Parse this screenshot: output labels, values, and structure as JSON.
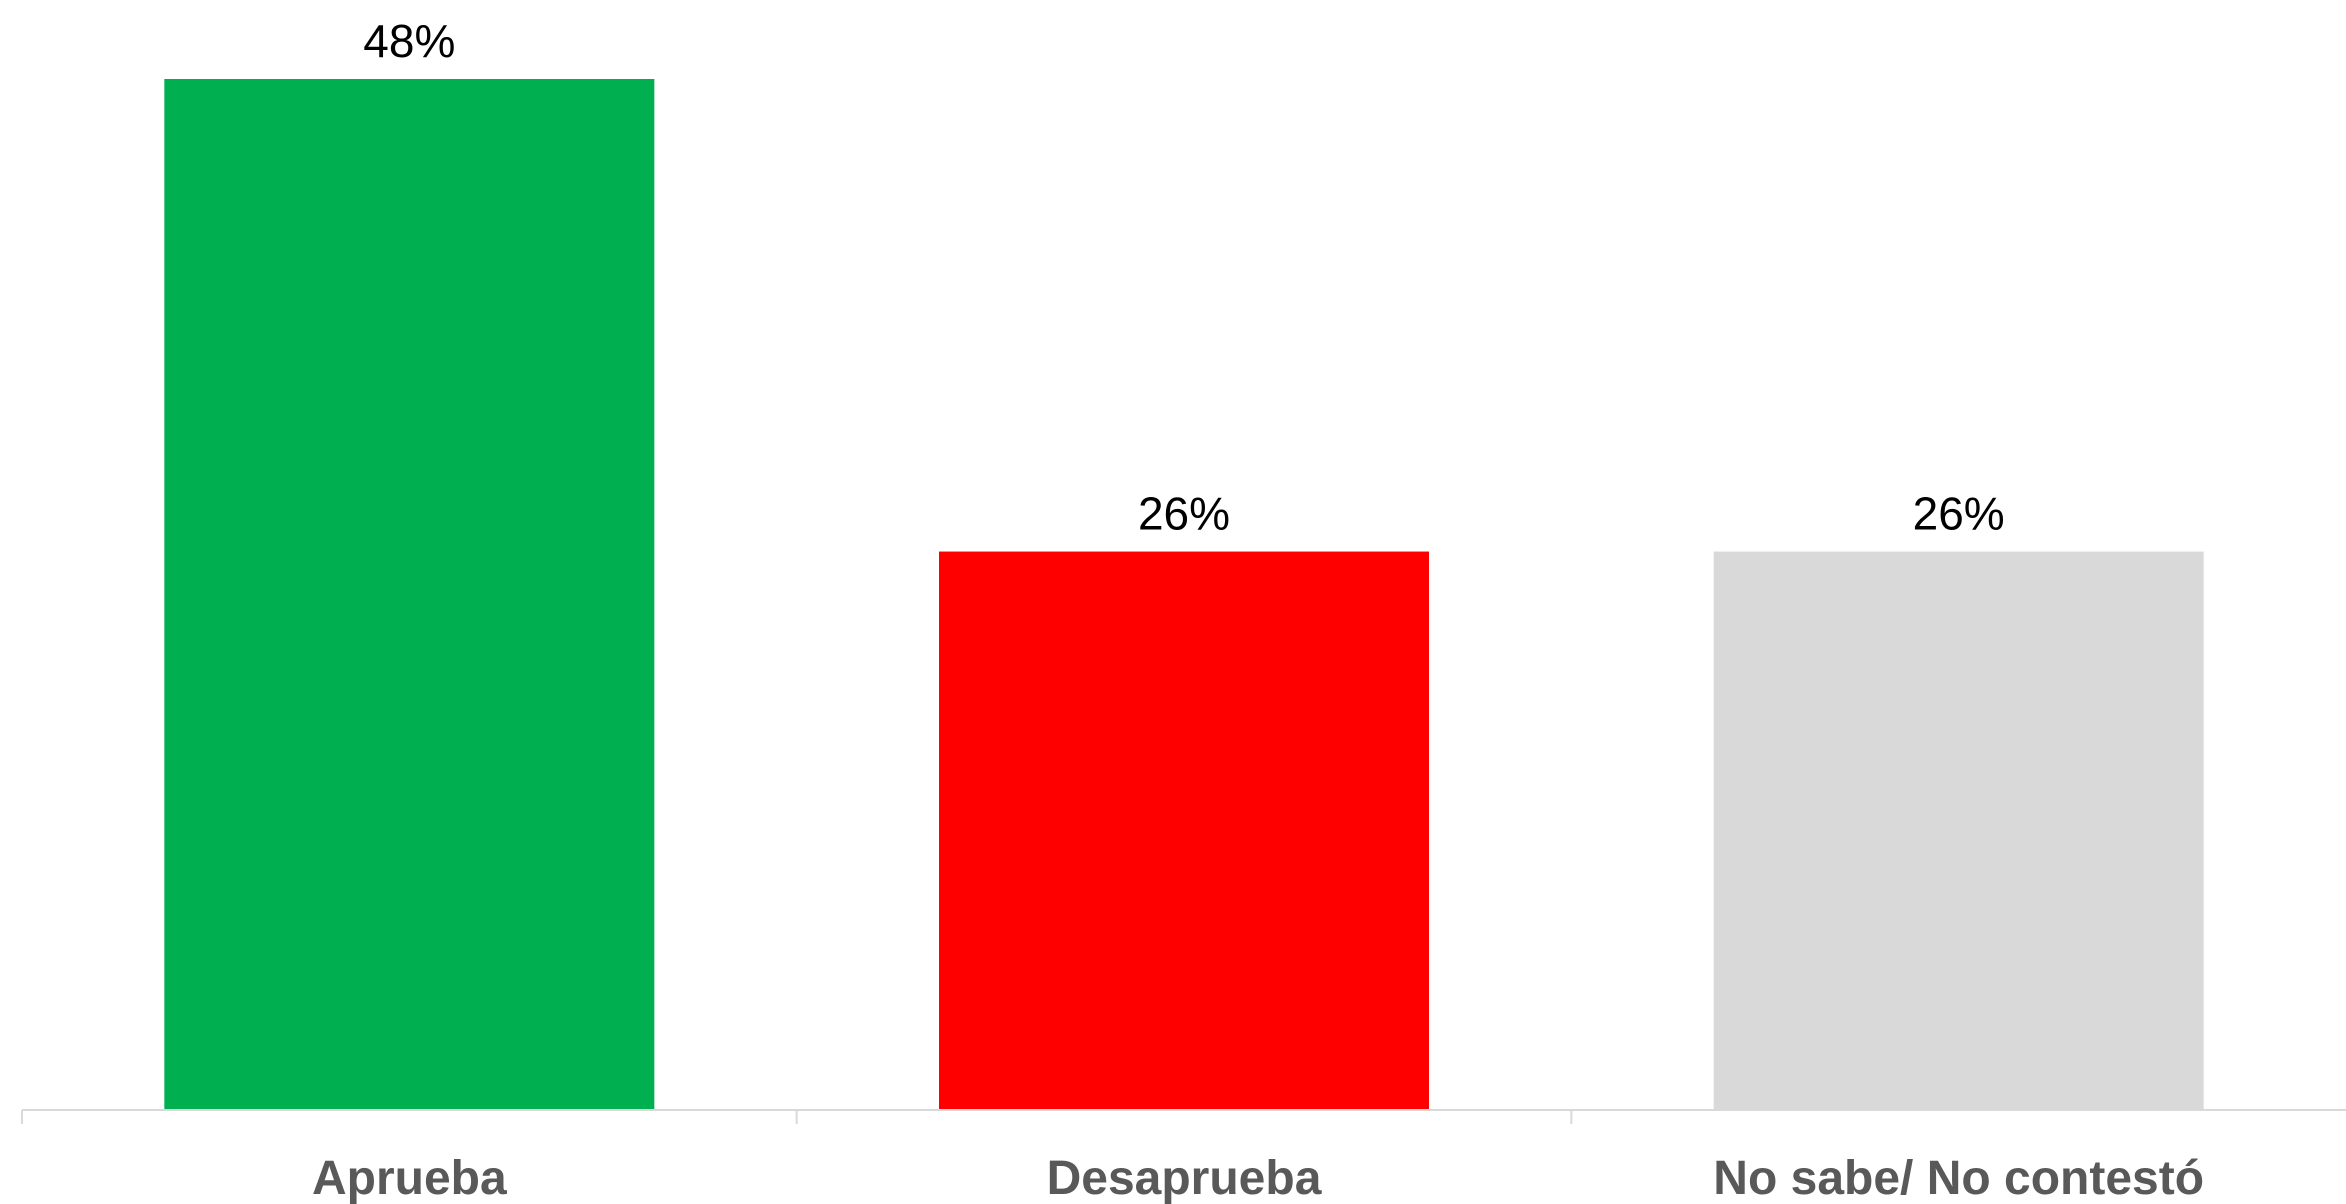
{
  "chart_data": {
    "type": "bar",
    "categories": [
      "Aprueba",
      "Desaprueba",
      "No sabe/ No contestó"
    ],
    "values": [
      48,
      26,
      26
    ],
    "value_labels": [
      "48%",
      "26%",
      "26%"
    ],
    "colors": [
      "#00B050",
      "#FF0000",
      "#D9D9D9"
    ],
    "ylim": [
      0,
      48
    ],
    "grid": false,
    "legend": "none"
  }
}
